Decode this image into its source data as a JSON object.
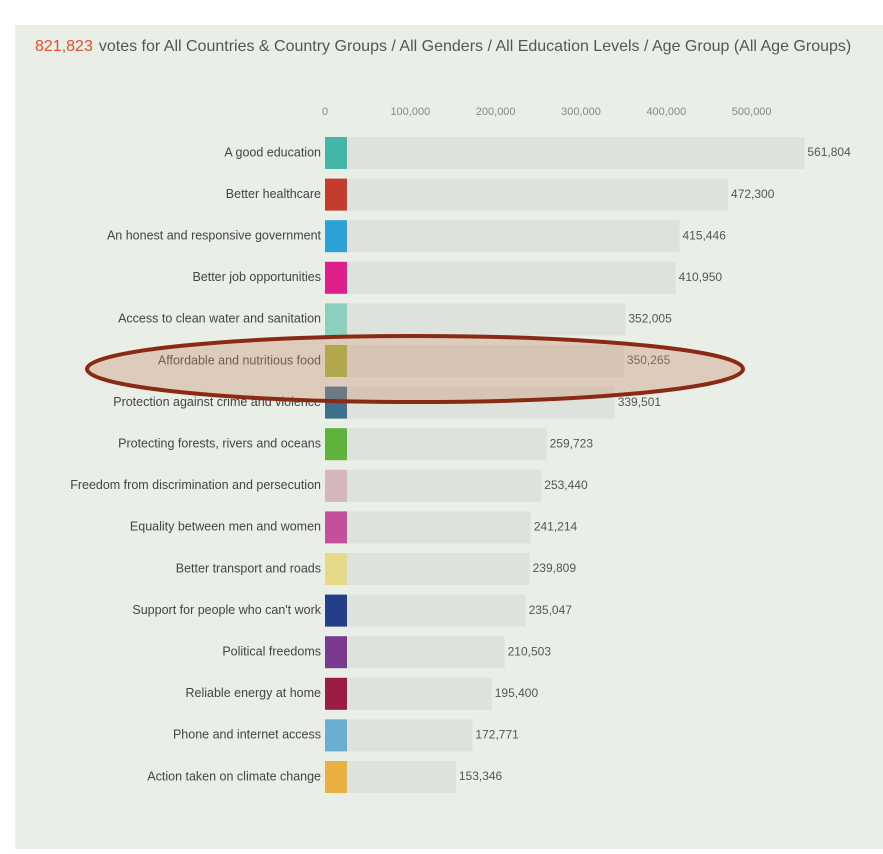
{
  "chart_data": {
    "type": "bar",
    "count": "821,823",
    "title": "votes for All Countries & Country Groups / All Genders / All Education Levels / Age Group (All Age Groups)",
    "categories": [
      "A good education",
      "Better healthcare",
      "An honest and responsive government",
      "Better job opportunities",
      "Access to clean water and sanitation",
      "Affordable and nutritious food",
      "Protection against crime and violence",
      "Protecting forests, rivers and oceans",
      "Freedom from discrimination and persecution",
      "Equality between men and women",
      "Better transport and roads",
      "Support for people who can't work",
      "Political freedoms",
      "Reliable energy at home",
      "Phone and internet access",
      "Action taken on climate change"
    ],
    "values": [
      561804,
      472300,
      415446,
      410950,
      352005,
      350265,
      339501,
      259723,
      253440,
      241214,
      239809,
      235047,
      210503,
      195400,
      172771,
      153346
    ],
    "value_labels": [
      "561,804",
      "472,300",
      "415,446",
      "410,950",
      "352,005",
      "350,265",
      "339,501",
      "259,723",
      "253,440",
      "241,214",
      "239,809",
      "235,047",
      "210,503",
      "195,400",
      "172,771",
      "153,346"
    ],
    "colors": [
      "#45b5a8",
      "#c53b2c",
      "#2ea0d8",
      "#e0208a",
      "#8ccfbf",
      "#a8b53a",
      "#3e6f8c",
      "#5db33b",
      "#d4b6bc",
      "#c44f9c",
      "#e6d98a",
      "#253e8a",
      "#7a3b8f",
      "#9c1d42",
      "#6aaed0",
      "#e8b040"
    ],
    "color": "#dde3dc",
    "xlim": [
      0,
      600000
    ],
    "xticks": [
      0,
      {
        "value": 100000,
        "label": "100,000"
      },
      {
        "value": 200000,
        "label": "200,000"
      },
      {
        "value": 300000,
        "label": "300,000"
      },
      {
        "value": 400000,
        "label": "400,000"
      },
      {
        "value": 500000,
        "label": "500,000"
      }
    ]
  }
}
